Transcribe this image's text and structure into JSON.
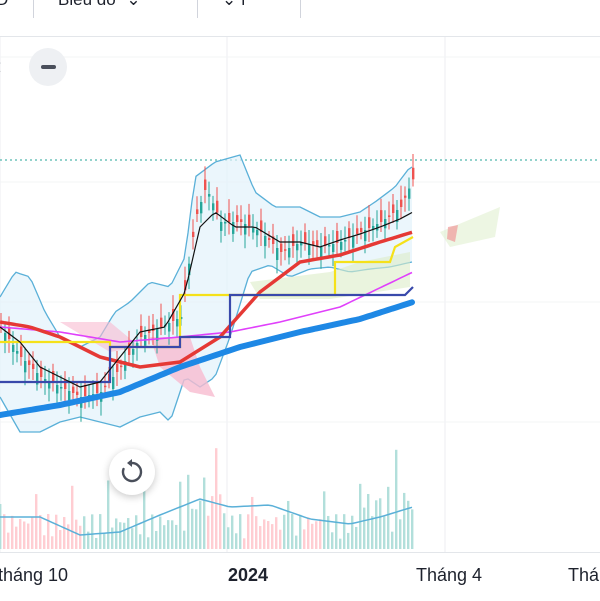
{
  "toolbar": {
    "left_fragment": "D",
    "chart_type_label": "Biểu đồ",
    "chevron": "⌄",
    "indicators_fragment": "⌄ f"
  },
  "buttons": {
    "collapse_icon": "minus-icon",
    "scroll_left_icon": "chevron-left-icon",
    "reset_icon": "rotate-icon"
  },
  "x_axis": {
    "labels": [
      "tháng 10",
      "2024",
      "Tháng 4",
      "Thá"
    ]
  },
  "colors": {
    "candle_up": "#26a69a",
    "candle_down": "#ef5350",
    "ema_short": "#111111",
    "ema_mid": "#e53935",
    "ema_long": "#1e88e5",
    "ema_magenta": "#e040fb",
    "kijun": "#f5e11a",
    "tenkan": "#3949ab",
    "bollinger": "#5ab0d8",
    "volume": "#26a69a"
  }
}
